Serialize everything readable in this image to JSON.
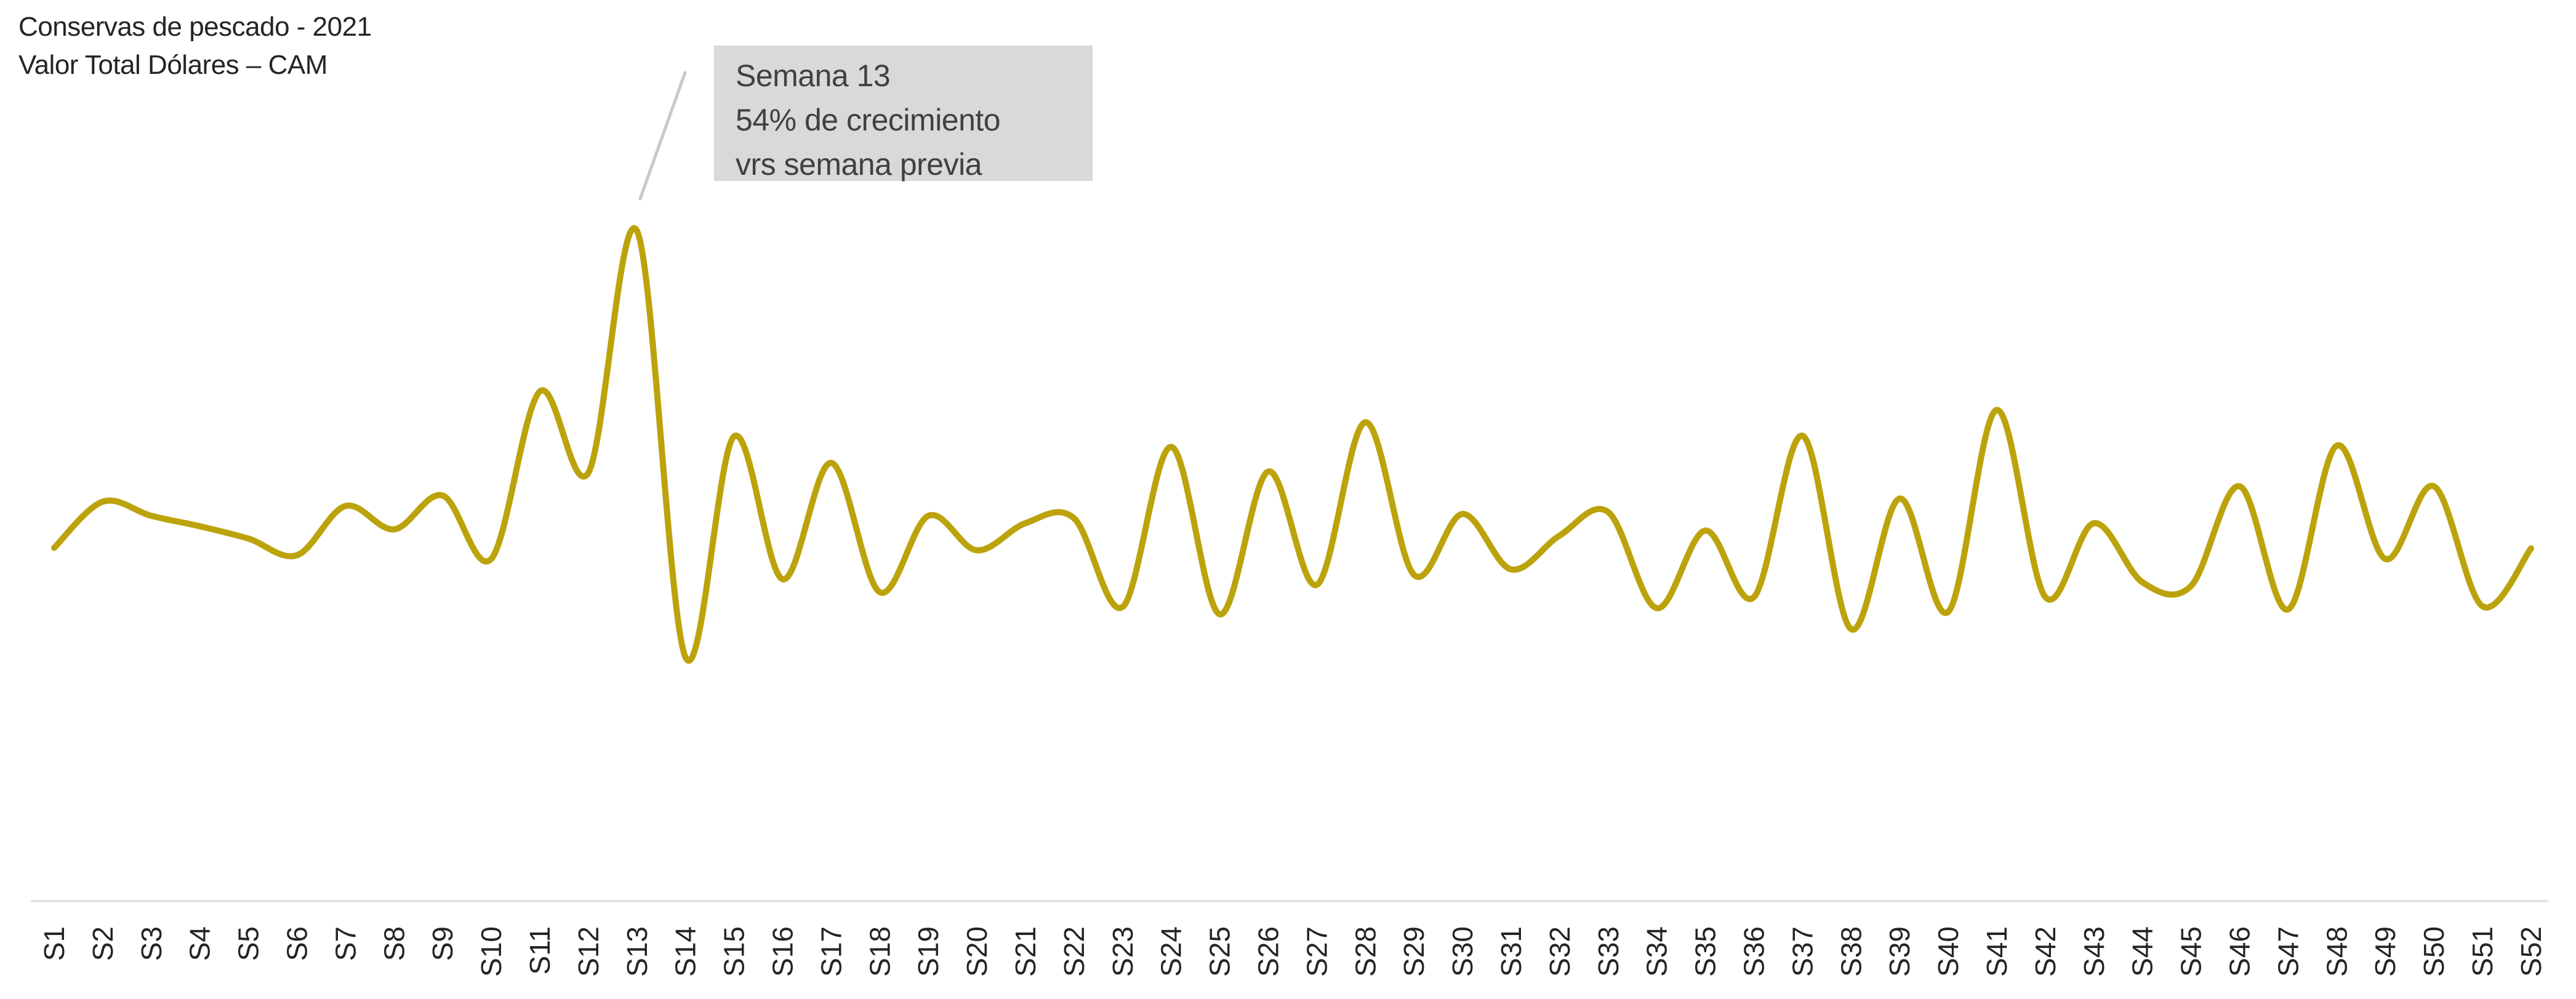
{
  "header": {
    "title_line1": "Conservas de pescado - 2021",
    "title_line2": "Valor Total Dólares – CAM",
    "text_color": "#252423"
  },
  "annotation": {
    "line1": "Semana 13",
    "line2": "54% de crecimiento",
    "line3": "vrs semana previa",
    "target_week": "S13",
    "box_color": "#D9D9D9",
    "text_color": "#404040",
    "callout_color": "#C9C9C9"
  },
  "chart_data": {
    "type": "line",
    "smooth": true,
    "title": "Conservas de pescado - 2021 / Valor Total Dólares – CAM",
    "xlabel": "",
    "ylabel": "",
    "legend": "none",
    "grid": false,
    "y_axis_hidden": true,
    "x_axis_line": true,
    "ylim": [
      0,
      120
    ],
    "line_color": "#BCA30C",
    "axis_line_color": "#E3E3E3",
    "label_color": "#252423",
    "background_color": "#FFFFFF",
    "categories": [
      "S1",
      "S2",
      "S3",
      "S4",
      "S5",
      "S6",
      "S7",
      "S8",
      "S9",
      "S10",
      "S11",
      "S12",
      "S13",
      "S14",
      "S15",
      "S16",
      "S17",
      "S18",
      "S19",
      "S20",
      "S21",
      "S22",
      "S23",
      "S24",
      "S25",
      "S26",
      "S27",
      "S28",
      "S29",
      "S30",
      "S31",
      "S32",
      "S33",
      "S34",
      "S35",
      "S36",
      "S37",
      "S38",
      "S39",
      "S40",
      "S41",
      "S42",
      "S43",
      "S44",
      "S45",
      "S46",
      "S47",
      "S48",
      "S49",
      "S50",
      "S51",
      "S52"
    ],
    "series": [
      {
        "name": "Valor Total Dólares",
        "values": [
          60.6,
          68.1,
          65.8,
          64.1,
          62.1,
          59.4,
          67.4,
          63.6,
          69.1,
          58.8,
          86.0,
          72.8,
          112.1,
          42.8,
          78.7,
          55.5,
          74.4,
          53.4,
          65.8,
          60.2,
          64.6,
          65.4,
          51.0,
          77.0,
          49.8,
          73.0,
          54.6,
          81.0,
          56.2,
          66.1,
          57.1,
          62.6,
          66.4,
          50.8,
          63.4,
          52.6,
          78.8,
          47.4,
          68.6,
          50.2,
          83.0,
          52.6,
          64.6,
          55.0,
          54.4,
          70.6,
          50.6,
          77.2,
          58.8,
          70.6,
          51.1,
          60.5
        ]
      }
    ]
  }
}
